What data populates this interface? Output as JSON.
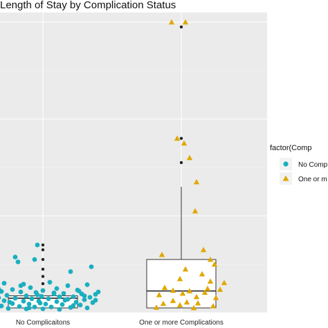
{
  "chart_data": {
    "type": "boxplot",
    "title": "Length of Stay by Complication Status",
    "xlabel": "",
    "ylabel": "",
    "categories": [
      "No Complicaitons",
      "One or more Complications"
    ],
    "ylim": [
      0,
      62
    ],
    "grid": true,
    "legend": {
      "title": "factor(Comp",
      "position": "right",
      "entries": [
        {
          "label": "No Comp",
          "shape": "circle",
          "color": "#1AAFBF"
        },
        {
          "label": "One or m",
          "shape": "triangle",
          "color": "#E0A800"
        }
      ]
    },
    "boxes": [
      {
        "category": "No Complicaitons",
        "q1": 1,
        "median": 3,
        "q3": 3.5,
        "whisker_low": 1,
        "whisker_high": 3.5,
        "outliers": [
          6,
          7.5,
          9,
          11,
          13,
          14
        ]
      },
      {
        "category": "One or more Complications",
        "q1": 1,
        "median": 4.5,
        "q3": 11,
        "whisker_low": 1,
        "whisker_high": 26,
        "outliers": [
          31,
          36,
          59
        ]
      }
    ],
    "series": [
      {
        "name": "No Comp",
        "color": "#1AAFBF",
        "shape": "circle",
        "points": [
          [
            0.62,
            14.5
          ],
          [
            0.96,
            14
          ],
          [
            0.8,
            11.5
          ],
          [
            0.94,
            11
          ],
          [
            0.82,
            10.5
          ],
          [
            1.35,
            9.5
          ],
          [
            1.2,
            8.5
          ],
          [
            0.62,
            8.2
          ],
          [
            0.58,
            6.8
          ],
          [
            1.05,
            6.3
          ],
          [
            0.72,
            6.1
          ],
          [
            0.86,
            5.9
          ],
          [
            1.18,
            5.6
          ],
          [
            1.32,
            5.8
          ],
          [
            0.66,
            5.3
          ],
          [
            0.91,
            5.2
          ],
          [
            1.1,
            5.0
          ],
          [
            0.78,
            4.8
          ],
          [
            1.25,
            4.7
          ],
          [
            1.0,
            4.6
          ],
          [
            0.6,
            4.5
          ],
          [
            0.7,
            4.4
          ],
          [
            0.84,
            4.3
          ],
          [
            0.95,
            4.2
          ],
          [
            1.08,
            4.1
          ],
          [
            1.15,
            4.0
          ],
          [
            1.28,
            3.9
          ],
          [
            1.38,
            3.8
          ],
          [
            0.64,
            3.6
          ],
          [
            0.74,
            3.6
          ],
          [
            0.88,
            3.5
          ],
          [
            0.99,
            3.4
          ],
          [
            1.12,
            3.3
          ],
          [
            1.22,
            3.3
          ],
          [
            1.34,
            3.2
          ],
          [
            0.68,
            3.1
          ],
          [
            0.8,
            3.0
          ],
          [
            0.92,
            2.9
          ],
          [
            1.04,
            2.9
          ],
          [
            1.18,
            2.8
          ],
          [
            1.3,
            2.7
          ],
          [
            0.62,
            2.6
          ],
          [
            0.72,
            2.5
          ],
          [
            0.86,
            2.4
          ],
          [
            0.97,
            2.4
          ],
          [
            1.1,
            2.3
          ],
          [
            1.24,
            2.2
          ],
          [
            1.36,
            2.1
          ],
          [
            0.66,
            2.0
          ],
          [
            0.78,
            1.9
          ],
          [
            0.9,
            1.8
          ],
          [
            1.02,
            1.8
          ],
          [
            1.14,
            1.7
          ],
          [
            1.27,
            1.6
          ],
          [
            0.6,
            1.5
          ],
          [
            0.7,
            1.4
          ],
          [
            0.83,
            1.3
          ],
          [
            0.94,
            1.2
          ],
          [
            1.06,
            1.2
          ],
          [
            1.2,
            1.1
          ],
          [
            1.32,
            1.0
          ],
          [
            0.75,
            0.9
          ],
          [
            0.88,
            0.8
          ],
          [
            1.0,
            0.8
          ],
          [
            1.12,
            0.7
          ],
          [
            0.58,
            3.9
          ],
          [
            0.96,
            3.7
          ],
          [
            1.26,
            4.5
          ],
          [
            1.4,
            4.3
          ],
          [
            0.68,
            4.9
          ],
          [
            0.84,
            5.6
          ],
          [
            1.08,
            3.9
          ],
          [
            1.16,
            2.6
          ],
          [
            0.76,
            2.2
          ],
          [
            0.98,
            2.0
          ],
          [
            1.22,
            1.5
          ],
          [
            1.38,
            2.6
          ],
          [
            0.64,
            1.1
          ],
          [
            0.9,
            1.0
          ],
          [
            1.3,
            3.5
          ]
        ]
      },
      {
        "name": "One or m",
        "color": "#E0A800",
        "shape": "triangle",
        "points": [
          [
            1.93,
            60
          ],
          [
            2.03,
            60
          ],
          [
            1.97,
            36
          ],
          [
            2.02,
            35
          ],
          [
            2.06,
            32
          ],
          [
            2.11,
            27
          ],
          [
            2.1,
            21
          ],
          [
            2.16,
            13
          ],
          [
            1.86,
            12
          ],
          [
            2.21,
            11
          ],
          [
            2.24,
            10
          ],
          [
            2.03,
            9
          ],
          [
            2.15,
            8
          ],
          [
            1.99,
            7
          ],
          [
            2.21,
            6.5
          ],
          [
            2.31,
            6.2
          ],
          [
            1.88,
            5.2
          ],
          [
            2.19,
            5
          ],
          [
            1.94,
            4.6
          ],
          [
            2.06,
            4.5
          ],
          [
            2.17,
            4.2
          ],
          [
            2.01,
            4.0
          ],
          [
            1.84,
            3.7
          ],
          [
            2.11,
            3.3
          ],
          [
            1.94,
            2.5
          ],
          [
            2.04,
            2.2
          ],
          [
            2.12,
            2.0
          ],
          [
            1.87,
            1.9
          ],
          [
            1.99,
            1.6
          ],
          [
            2.23,
            1.4
          ],
          [
            1.82,
            1.1
          ],
          [
            2.09,
            1.0
          ],
          [
            2.25,
            3.1
          ],
          [
            2.28,
            4.8
          ]
        ]
      }
    ]
  }
}
